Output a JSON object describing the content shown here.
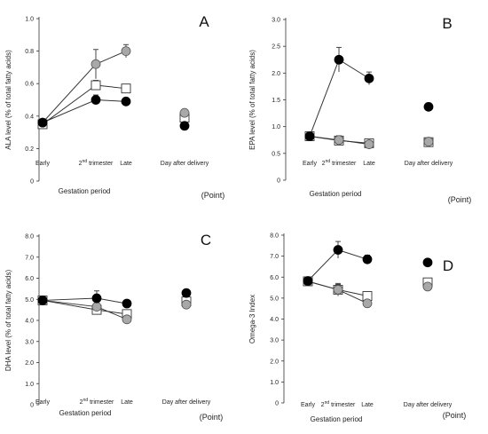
{
  "legend": {
    "black_circle_color": "#000000",
    "gray_circle_color": "#a8a8a8",
    "square_fill": "#ffffff"
  },
  "chart_data": [
    {
      "panel": "A",
      "type": "line",
      "ylabel": "ALA level (% of total fatty acids)",
      "xlabel": "Gestation period",
      "xunit": "(Point)",
      "categories": [
        "Early",
        "2nd trimester",
        "Late",
        "Day after delivery"
      ],
      "yticks": [
        "0",
        "0.2",
        "0.4",
        "0.6",
        "0.8",
        "1.0"
      ],
      "ylim": [
        0,
        1.0
      ],
      "series": [
        {
          "marker": "black-circle",
          "values": [
            0.36,
            0.5,
            0.49,
            0.34
          ],
          "errors": [
            0.01,
            0.03,
            0.01,
            0
          ]
        },
        {
          "marker": "white-square",
          "values": [
            0.35,
            0.59,
            0.57,
            0.39
          ],
          "errors": [
            0.01,
            0.03,
            0,
            0
          ]
        },
        {
          "marker": "gray-circle",
          "values": [
            0.36,
            0.72,
            0.8,
            0.42
          ],
          "errors": [
            0.01,
            0.09,
            0.04,
            0
          ]
        }
      ]
    },
    {
      "panel": "B",
      "type": "line",
      "ylabel": "EPA level (% of total fatty acids)",
      "xlabel": "Gestation period",
      "xunit": "(Point)",
      "categories": [
        "Early",
        "2nd trimester",
        "Late",
        "Day after delivery"
      ],
      "yticks": [
        "0",
        "0.5",
        "1.0",
        "1.5",
        "2.0",
        "2.5",
        "3.0"
      ],
      "ylim": [
        0,
        3.0
      ],
      "series": [
        {
          "marker": "black-circle",
          "values": [
            0.82,
            2.25,
            1.9,
            1.37
          ],
          "errors": [
            0.05,
            0.23,
            0.12,
            0.07
          ]
        },
        {
          "marker": "white-square",
          "values": [
            0.82,
            0.74,
            0.69,
            0.71
          ],
          "errors": [
            0.05,
            0.07,
            0.03,
            0
          ]
        },
        {
          "marker": "gray-circle",
          "values": [
            0.82,
            0.75,
            0.67,
            0.72
          ],
          "errors": [
            0.05,
            0.08,
            0.03,
            0
          ]
        }
      ]
    },
    {
      "panel": "C",
      "type": "line",
      "ylabel": "DHA level (% of total fatty acids)",
      "xlabel": "Gestation period",
      "xunit": "(Point)",
      "categories": [
        "Early",
        "2nd trimester",
        "Late",
        "Day after delivery"
      ],
      "yticks": [
        "0",
        "1.0",
        "2.0",
        "3.0",
        "4.0",
        "5.0",
        "6.0",
        "7.0",
        "8.0"
      ],
      "ylim": [
        0,
        8.0
      ],
      "series": [
        {
          "marker": "black-circle",
          "values": [
            4.95,
            5.05,
            4.8,
            5.3
          ],
          "errors": [
            0.15,
            0.35,
            0.15,
            0
          ]
        },
        {
          "marker": "white-square",
          "values": [
            4.95,
            4.5,
            4.3,
            4.9
          ],
          "errors": [
            0.15,
            0.2,
            0.15,
            0
          ]
        },
        {
          "marker": "gray-circle",
          "values": [
            4.95,
            4.65,
            4.05,
            4.75
          ],
          "errors": [
            0.15,
            0.25,
            0.15,
            0
          ]
        }
      ]
    },
    {
      "panel": "D",
      "type": "line",
      "ylabel": "Omega-3 Index",
      "xlabel": "Gestation period",
      "xunit": "(Point)",
      "categories": [
        "Early",
        "2nd trimester",
        "Late",
        "Day after delivery"
      ],
      "yticks": [
        "0",
        "1.0",
        "2.0",
        "3.0",
        "4.0",
        "5.0",
        "6.0",
        "7.0",
        "8.0"
      ],
      "ylim": [
        0,
        8.0
      ],
      "series": [
        {
          "marker": "black-circle",
          "values": [
            5.82,
            7.3,
            6.85,
            6.7
          ],
          "errors": [
            0.12,
            0.4,
            0.2,
            0
          ]
        },
        {
          "marker": "white-square",
          "values": [
            5.8,
            5.4,
            5.1,
            5.75
          ],
          "errors": [
            0.12,
            0.3,
            0.1,
            0
          ]
        },
        {
          "marker": "gray-circle",
          "values": [
            5.8,
            5.4,
            4.75,
            5.55
          ],
          "errors": [
            0.12,
            0.25,
            0.1,
            0
          ]
        }
      ]
    }
  ]
}
